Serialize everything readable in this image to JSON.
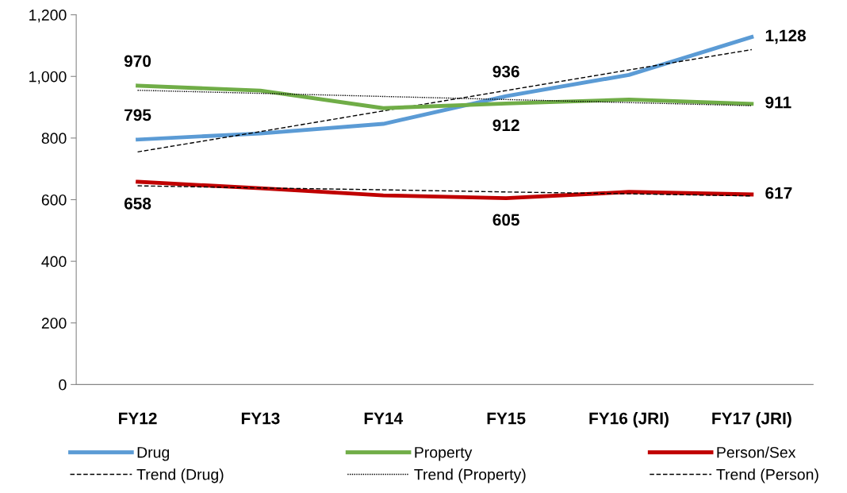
{
  "chart_data": {
    "type": "line",
    "categories": [
      "FY12",
      "FY13",
      "FY14",
      "FY15",
      "FY16 (JRI)",
      "FY17 (JRI)"
    ],
    "series": [
      {
        "name": "Drug",
        "color": "#5b9bd5",
        "values": [
          795,
          815,
          846,
          936,
          1005,
          1128
        ],
        "value_labels": [
          "795",
          null,
          null,
          "936",
          null,
          "1,128"
        ]
      },
      {
        "name": "Trend (Drug)",
        "color": "#000000",
        "line_style": "dashed",
        "values": [
          755,
          821,
          888,
          954,
          1021,
          1087
        ]
      },
      {
        "name": "Property",
        "color": "#70ad47",
        "values": [
          970,
          954,
          897,
          912,
          925,
          911
        ],
        "value_labels": [
          "970",
          null,
          null,
          "912",
          null,
          "911"
        ]
      },
      {
        "name": "Trend (Property)",
        "color": "#000000",
        "line_style": "dotted",
        "values": [
          955,
          945,
          935,
          925,
          915,
          905
        ]
      },
      {
        "name": "Person/Sex",
        "color": "#c00000",
        "values": [
          658,
          637,
          614,
          605,
          625,
          617
        ],
        "value_labels": [
          "658",
          null,
          null,
          "605",
          null,
          "617"
        ]
      },
      {
        "name": "Trend (Person)",
        "color": "#000000",
        "line_style": "dashed",
        "values": [
          645,
          638,
          632,
          625,
          619,
          612
        ]
      }
    ],
    "ylim": [
      0,
      1200
    ],
    "yticks": [
      0,
      200,
      400,
      600,
      800,
      {
        "value": 1000,
        "label": "1,000"
      },
      {
        "value": 1200,
        "label": "1,200"
      }
    ],
    "grid": false,
    "legend": "bottom",
    "marker": "none"
  }
}
